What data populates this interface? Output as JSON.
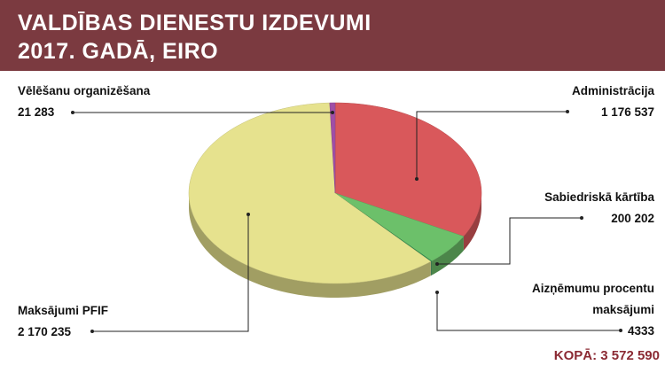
{
  "chart_data": {
    "type": "pie",
    "title": [
      "VALDĪBAS DIENESTU IZDEVUMI",
      "2017. GADĀ, EIRO"
    ],
    "categories": [
      "Administrācija",
      "Sabiedriskā kārtība",
      "Aizņēmumu procentu maksājumi",
      "Maksājumi PFIF",
      "Vēlēšanu organizēšana"
    ],
    "values": [
      1176537,
      200202,
      4333,
      2170235,
      21283
    ],
    "value_labels": [
      "1 176 537",
      "200 202",
      "4333",
      "2 170 235",
      "21 283"
    ],
    "colors": [
      "#d9585b",
      "#6cc06a",
      "#2f8f52",
      "#e6e28e",
      "#a04fa6"
    ],
    "total_label": "KOPĀ: 3 572 590"
  }
}
